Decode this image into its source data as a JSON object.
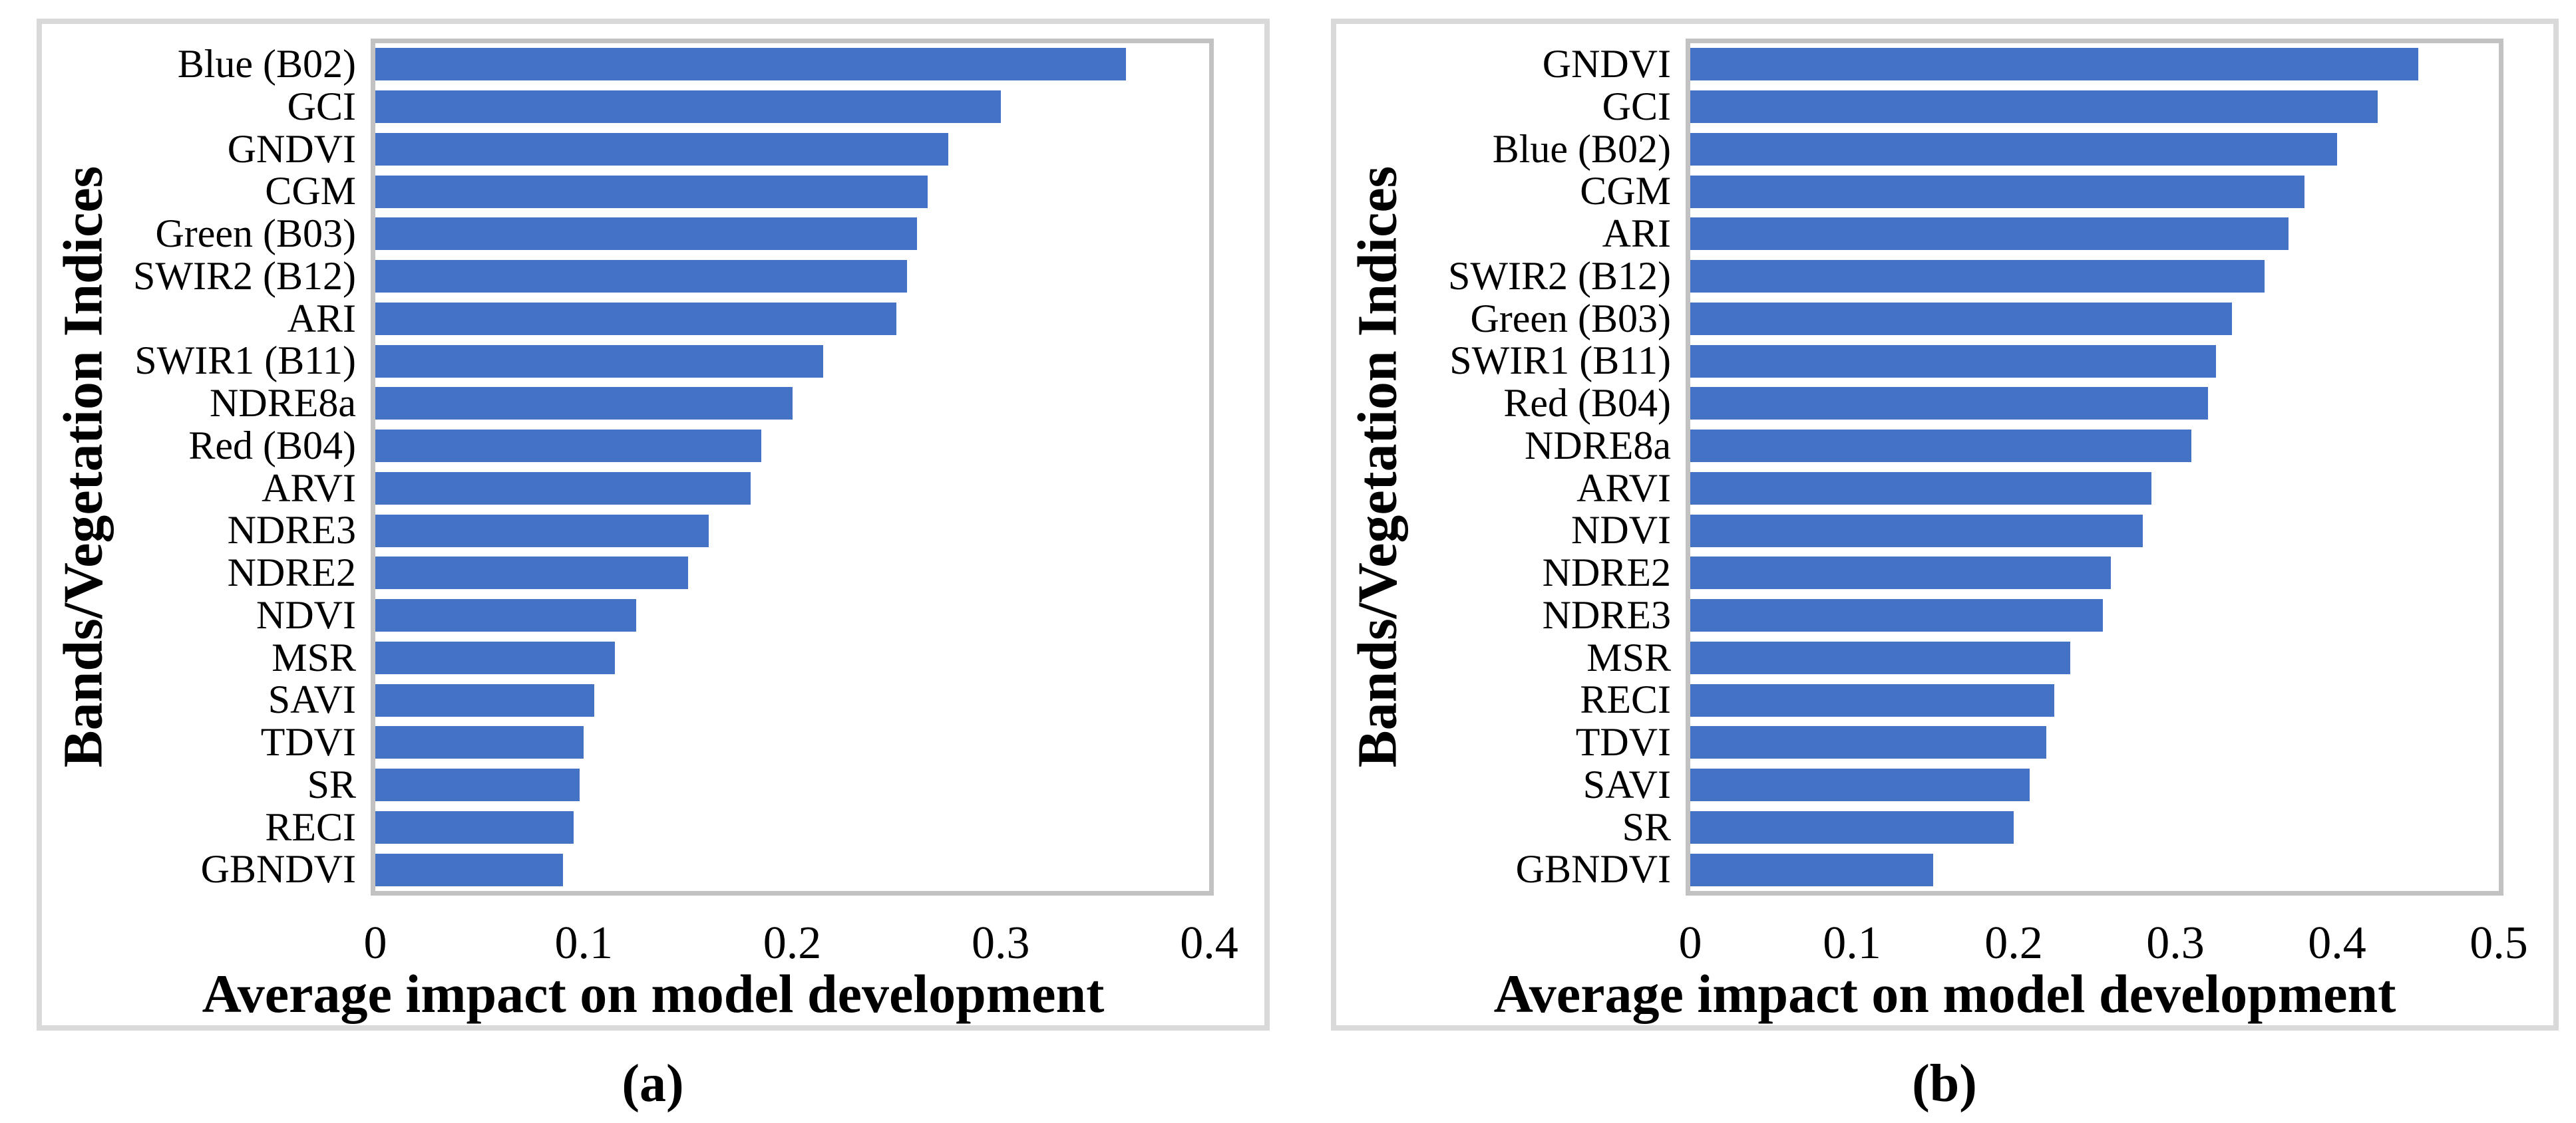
{
  "figure_background": "#ffffff",
  "panel_border_color": "#d9d9d9",
  "plot_border_color": "#c2c2c2",
  "chart_data": [
    {
      "type": "bar",
      "orientation": "horizontal",
      "caption": "(a)",
      "ylabel": "Bands/Vegetation Indices",
      "xlabel": "Average impact on model development",
      "xlim": [
        0,
        0.4
      ],
      "xticks": [
        0,
        0.1,
        0.2,
        0.3,
        0.4
      ],
      "tick_labels": [
        "0",
        "0.1",
        "0.2",
        "0.3",
        "0.4"
      ],
      "grid": false,
      "legend": false,
      "bar_color": "#4472C4",
      "categories": [
        "Blue (B02)",
        "GCI",
        "GNDVI",
        "CGM",
        "Green (B03)",
        "SWIR2 (B12)",
        "ARI",
        "SWIR1 (B11)",
        "NDRE8a",
        "Red (B04)",
        "ARVI",
        "NDRE3",
        "NDRE2",
        "NDVI",
        "MSR",
        "SAVI",
        "TDVI",
        "SR",
        "RECI",
        "GBNDVI"
      ],
      "values": [
        0.36,
        0.3,
        0.275,
        0.265,
        0.26,
        0.255,
        0.25,
        0.215,
        0.2,
        0.185,
        0.18,
        0.16,
        0.15,
        0.125,
        0.115,
        0.105,
        0.1,
        0.098,
        0.095,
        0.09
      ]
    },
    {
      "type": "bar",
      "orientation": "horizontal",
      "caption": "(b)",
      "ylabel": "Bands/Vegetation Indices",
      "xlabel": "Average impact on model development",
      "xlim": [
        0,
        0.5
      ],
      "xticks": [
        0,
        0.1,
        0.2,
        0.3,
        0.4,
        0.5
      ],
      "tick_labels": [
        "0",
        "0.1",
        "0.2",
        "0.3",
        "0.4",
        "0.5"
      ],
      "grid": false,
      "legend": false,
      "bar_color": "#4472C4",
      "categories": [
        "GNDVI",
        "GCI",
        "Blue (B02)",
        "CGM",
        "ARI",
        "SWIR2 (B12)",
        "Green (B03)",
        "SWIR1 (B11)",
        "Red (B04)",
        "NDRE8a",
        "ARVI",
        "NDVI",
        "NDRE2",
        "NDRE3",
        "MSR",
        "RECI",
        "TDVI",
        "SAVI",
        "SR",
        "GBNDVI"
      ],
      "values": [
        0.45,
        0.425,
        0.4,
        0.38,
        0.37,
        0.355,
        0.335,
        0.325,
        0.32,
        0.31,
        0.285,
        0.28,
        0.26,
        0.255,
        0.235,
        0.225,
        0.22,
        0.21,
        0.2,
        0.15
      ]
    }
  ]
}
